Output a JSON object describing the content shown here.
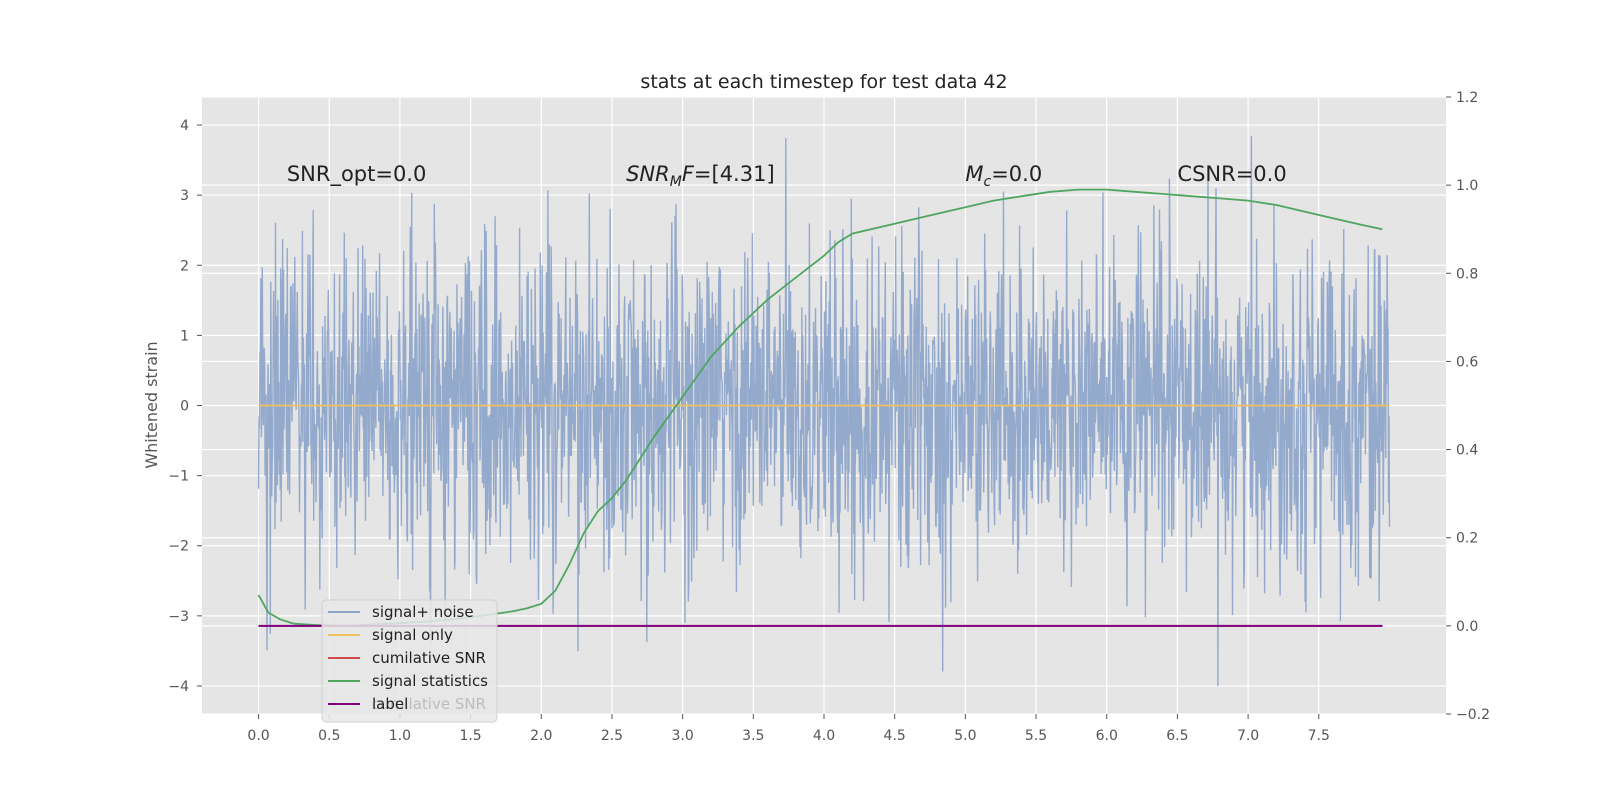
{
  "chart_data": {
    "type": "line",
    "title": "stats at each timestep for test data 42",
    "ylabel": "Whitened strain",
    "xlabel": "",
    "xlim": [
      -0.4,
      8.4
    ],
    "ylim": [
      -4.4,
      4.4
    ],
    "y2lim": [
      -0.2,
      1.2
    ],
    "x_ticks": [
      "0.0",
      "0.5",
      "1.0",
      "1.5",
      "2.0",
      "2.5",
      "3.0",
      "3.5",
      "4.0",
      "4.5",
      "5.0",
      "5.5",
      "6.0",
      "6.5",
      "7.0",
      "7.5"
    ],
    "y_ticks": [
      "−4",
      "−3",
      "−2",
      "−1",
      "0",
      "1",
      "2",
      "3",
      "4"
    ],
    "y2_ticks": [
      "−0.2",
      "0.0",
      "0.2",
      "0.4",
      "0.6",
      "0.8",
      "1.0",
      "1.2"
    ],
    "grid": true,
    "colors": {
      "background": "#e5e5e5",
      "noise": "#8fa6cb",
      "signal": "#f0c060",
      "cumulative": "#d24b4b",
      "statistics": "#4fa65f",
      "label": "#800080"
    },
    "annotations": [
      {
        "id": "snr-opt",
        "parts": [
          {
            "text": "SNR_opt=0.0",
            "italic": false
          }
        ],
        "x": 0.2,
        "y": 3.2
      },
      {
        "id": "snr-mf",
        "parts": [
          {
            "text": "SNR",
            "italic": true
          },
          {
            "text": "M",
            "italic": true,
            "sub": true
          },
          {
            "text": "F",
            "italic": true
          },
          {
            "text": "=[4.31]",
            "italic": false
          }
        ],
        "x": 2.6,
        "y": 3.2
      },
      {
        "id": "mc",
        "parts": [
          {
            "text": "M",
            "italic": true
          },
          {
            "text": "c",
            "italic": true,
            "sub": true
          },
          {
            "text": "=0.0",
            "italic": false
          }
        ],
        "x": 5.0,
        "y": 3.2
      },
      {
        "id": "csnr",
        "parts": [
          {
            "text": "CSNR=0.0",
            "italic": false
          }
        ],
        "x": 6.5,
        "y": 3.2
      }
    ],
    "series": [
      {
        "name": "signal+ noise",
        "axis": "left",
        "description": "white noise, sigma about 1, x from 0 to 8",
        "x_range": [
          0,
          8
        ],
        "amplitude_sigma": 1.0
      },
      {
        "name": "signal only",
        "axis": "left",
        "x": [
          0,
          8
        ],
        "y": [
          0,
          0
        ]
      },
      {
        "name": "cumilative SNR",
        "axis": "right",
        "x": [
          0,
          7.95
        ],
        "y": [
          0,
          0
        ]
      },
      {
        "name": "signal statistics",
        "axis": "right",
        "x": [
          0.0,
          0.07,
          0.15,
          0.25,
          0.4,
          0.6,
          0.8,
          1.0,
          1.2,
          1.4,
          1.6,
          1.8,
          1.9,
          2.0,
          2.1,
          2.2,
          2.3,
          2.4,
          2.5,
          2.6,
          2.8,
          3.0,
          3.2,
          3.4,
          3.6,
          3.8,
          4.0,
          4.1,
          4.2,
          4.4,
          4.6,
          4.8,
          5.0,
          5.2,
          5.4,
          5.6,
          5.8,
          6.0,
          6.2,
          6.4,
          6.6,
          6.8,
          7.0,
          7.2,
          7.4,
          7.6,
          7.8,
          7.95
        ],
        "y": [
          0.07,
          0.03,
          0.015,
          0.005,
          0.002,
          0.0,
          0.003,
          0.006,
          0.01,
          0.016,
          0.024,
          0.033,
          0.04,
          0.05,
          0.08,
          0.14,
          0.21,
          0.26,
          0.29,
          0.33,
          0.43,
          0.52,
          0.61,
          0.68,
          0.74,
          0.79,
          0.84,
          0.87,
          0.89,
          0.905,
          0.92,
          0.935,
          0.95,
          0.965,
          0.975,
          0.985,
          0.99,
          0.99,
          0.985,
          0.98,
          0.975,
          0.97,
          0.965,
          0.955,
          0.94,
          0.925,
          0.91,
          0.9
        ]
      },
      {
        "name": "label",
        "axis": "right",
        "x": [
          0,
          7.95
        ],
        "y": [
          0,
          0
        ]
      }
    ],
    "legend": {
      "placement": "lower-left",
      "entries": [
        "signal+ noise",
        "signal only",
        "cumilative SNR",
        "signal statistics",
        "label"
      ],
      "ghost_text": "cumilative SNR"
    }
  }
}
